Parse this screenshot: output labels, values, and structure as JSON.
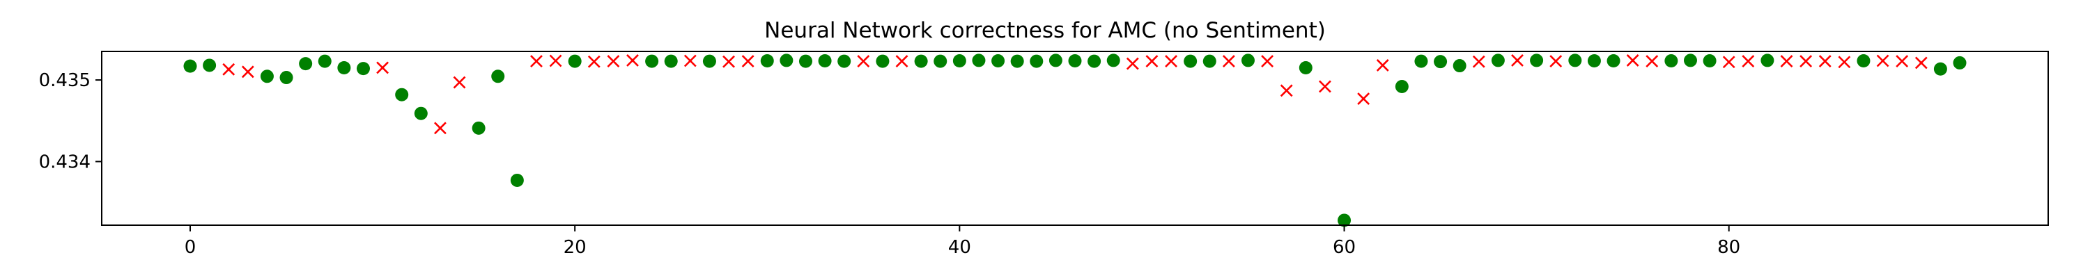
{
  "chart_data": {
    "type": "scatter",
    "title": "Neural Network correctness for AMC (no Sentiment)",
    "xlabel": "",
    "ylabel": "",
    "xlim": [
      -4.6,
      96.6
    ],
    "ylim": [
      0.43322,
      0.43535
    ],
    "xticks": [
      0,
      20,
      40,
      60,
      80
    ],
    "xtick_labels": [
      "0",
      "20",
      "40",
      "60",
      "80"
    ],
    "yticks": [
      0.434,
      0.435
    ],
    "ytick_labels": [
      "0.434",
      "0.435"
    ],
    "grid": false,
    "legend": "none",
    "series": [
      {
        "marker": "circle",
        "color": "#008000",
        "points": [
          {
            "x": 0,
            "y": 0.43517
          },
          {
            "x": 1,
            "y": 0.43518
          },
          {
            "x": 4,
            "y": 0.435045
          },
          {
            "x": 5,
            "y": 0.43503
          },
          {
            "x": 6,
            "y": 0.4352
          },
          {
            "x": 7,
            "y": 0.43523
          },
          {
            "x": 8,
            "y": 0.43515
          },
          {
            "x": 9,
            "y": 0.43514
          },
          {
            "x": 11,
            "y": 0.43482
          },
          {
            "x": 12,
            "y": 0.43459
          },
          {
            "x": 15,
            "y": 0.43441
          },
          {
            "x": 16,
            "y": 0.435045
          },
          {
            "x": 17,
            "y": 0.43377
          },
          {
            "x": 20,
            "y": 0.43523
          },
          {
            "x": 24,
            "y": 0.43523
          },
          {
            "x": 25,
            "y": 0.43523
          },
          {
            "x": 27,
            "y": 0.43523
          },
          {
            "x": 30,
            "y": 0.435235
          },
          {
            "x": 31,
            "y": 0.43524
          },
          {
            "x": 32,
            "y": 0.43523
          },
          {
            "x": 33,
            "y": 0.435235
          },
          {
            "x": 34,
            "y": 0.43523
          },
          {
            "x": 36,
            "y": 0.43523
          },
          {
            "x": 38,
            "y": 0.43523
          },
          {
            "x": 39,
            "y": 0.43523
          },
          {
            "x": 40,
            "y": 0.435235
          },
          {
            "x": 41,
            "y": 0.43524
          },
          {
            "x": 42,
            "y": 0.435235
          },
          {
            "x": 43,
            "y": 0.43523
          },
          {
            "x": 44,
            "y": 0.43523
          },
          {
            "x": 45,
            "y": 0.43524
          },
          {
            "x": 46,
            "y": 0.435235
          },
          {
            "x": 47,
            "y": 0.43523
          },
          {
            "x": 48,
            "y": 0.43524
          },
          {
            "x": 52,
            "y": 0.43523
          },
          {
            "x": 53,
            "y": 0.43523
          },
          {
            "x": 55,
            "y": 0.43524
          },
          {
            "x": 58,
            "y": 0.43515
          },
          {
            "x": 60,
            "y": 0.43328
          },
          {
            "x": 63,
            "y": 0.43492
          },
          {
            "x": 64,
            "y": 0.43523
          },
          {
            "x": 65,
            "y": 0.435225
          },
          {
            "x": 66,
            "y": 0.435175
          },
          {
            "x": 68,
            "y": 0.43524
          },
          {
            "x": 70,
            "y": 0.43524
          },
          {
            "x": 72,
            "y": 0.43524
          },
          {
            "x": 73,
            "y": 0.435235
          },
          {
            "x": 74,
            "y": 0.435235
          },
          {
            "x": 77,
            "y": 0.435235
          },
          {
            "x": 78,
            "y": 0.43524
          },
          {
            "x": 79,
            "y": 0.435235
          },
          {
            "x": 82,
            "y": 0.43524
          },
          {
            "x": 87,
            "y": 0.435235
          },
          {
            "x": 91,
            "y": 0.435135
          },
          {
            "x": 92,
            "y": 0.43521
          }
        ]
      },
      {
        "marker": "x",
        "color": "#ff0000",
        "points": [
          {
            "x": 2,
            "y": 0.43513
          },
          {
            "x": 3,
            "y": 0.4351
          },
          {
            "x": 10,
            "y": 0.43515
          },
          {
            "x": 13,
            "y": 0.43441
          },
          {
            "x": 14,
            "y": 0.43497
          },
          {
            "x": 18,
            "y": 0.43523
          },
          {
            "x": 19,
            "y": 0.435235
          },
          {
            "x": 21,
            "y": 0.435225
          },
          {
            "x": 22,
            "y": 0.43523
          },
          {
            "x": 23,
            "y": 0.43524
          },
          {
            "x": 26,
            "y": 0.435235
          },
          {
            "x": 28,
            "y": 0.435225
          },
          {
            "x": 29,
            "y": 0.43523
          },
          {
            "x": 35,
            "y": 0.43523
          },
          {
            "x": 37,
            "y": 0.43523
          },
          {
            "x": 49,
            "y": 0.4352
          },
          {
            "x": 50,
            "y": 0.43523
          },
          {
            "x": 51,
            "y": 0.43523
          },
          {
            "x": 54,
            "y": 0.43523
          },
          {
            "x": 56,
            "y": 0.43523
          },
          {
            "x": 57,
            "y": 0.43487
          },
          {
            "x": 59,
            "y": 0.43492
          },
          {
            "x": 61,
            "y": 0.43477
          },
          {
            "x": 62,
            "y": 0.43518
          },
          {
            "x": 67,
            "y": 0.435225
          },
          {
            "x": 69,
            "y": 0.43524
          },
          {
            "x": 71,
            "y": 0.43523
          },
          {
            "x": 75,
            "y": 0.43524
          },
          {
            "x": 76,
            "y": 0.43523
          },
          {
            "x": 80,
            "y": 0.43522
          },
          {
            "x": 81,
            "y": 0.43523
          },
          {
            "x": 83,
            "y": 0.43523
          },
          {
            "x": 84,
            "y": 0.43523
          },
          {
            "x": 85,
            "y": 0.43523
          },
          {
            "x": 86,
            "y": 0.43522
          },
          {
            "x": 88,
            "y": 0.435235
          },
          {
            "x": 89,
            "y": 0.43523
          },
          {
            "x": 90,
            "y": 0.43521
          }
        ]
      }
    ]
  }
}
